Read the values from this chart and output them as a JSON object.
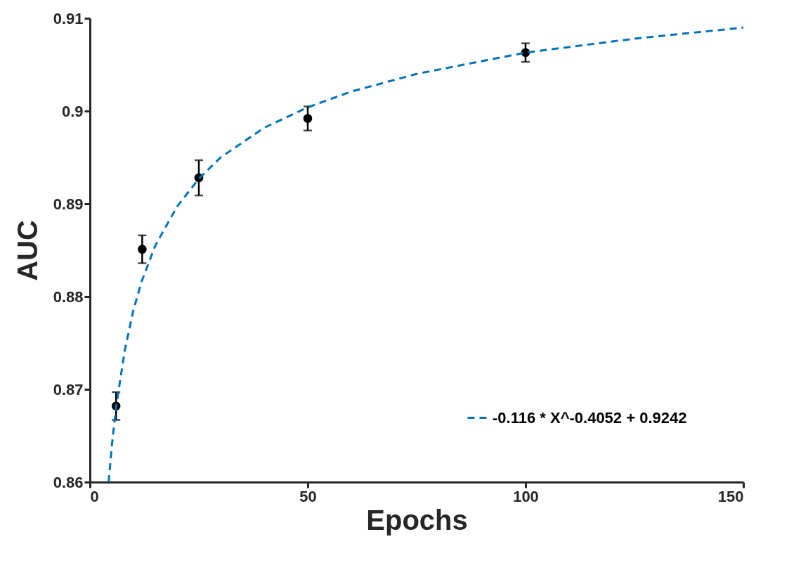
{
  "chart_data": {
    "type": "scatter",
    "xlabel": "Epochs",
    "ylabel": "AUC",
    "xlim": [
      0,
      150
    ],
    "xticks": [
      0,
      50,
      100,
      150
    ],
    "ylim": [
      0.86,
      0.91
    ],
    "yticks": [
      0.86,
      0.87,
      0.88,
      0.89,
      0.9,
      0.91
    ],
    "grid": false,
    "legend": "bottom right",
    "marker": "circle",
    "series": [
      {
        "color": "#000000",
        "x": [
          6,
          12,
          25,
          50,
          100
        ],
        "values": [
          0.8682,
          0.8851,
          0.8928,
          0.8992,
          0.9063
        ],
        "errors": [
          0.0015,
          0.0015,
          0.0019,
          0.0013,
          0.001
        ]
      },
      {
        "type": "line",
        "name": "-0.116 * X^-0.4052 + 0.9242",
        "color": "#0072bd",
        "line_style": "dashed",
        "marker": "none",
        "x": [
          4.3,
          5,
          6,
          8,
          10,
          12,
          15,
          20,
          25,
          30,
          40,
          50,
          60,
          75,
          100,
          125,
          150
        ],
        "values": [
          0.86,
          0.8638,
          0.8681,
          0.8742,
          0.8786,
          0.8818,
          0.8855,
          0.8897,
          0.8927,
          0.895,
          0.8982,
          0.9004,
          0.9021,
          0.904,
          0.9063,
          0.9078,
          0.909
        ]
      }
    ]
  }
}
